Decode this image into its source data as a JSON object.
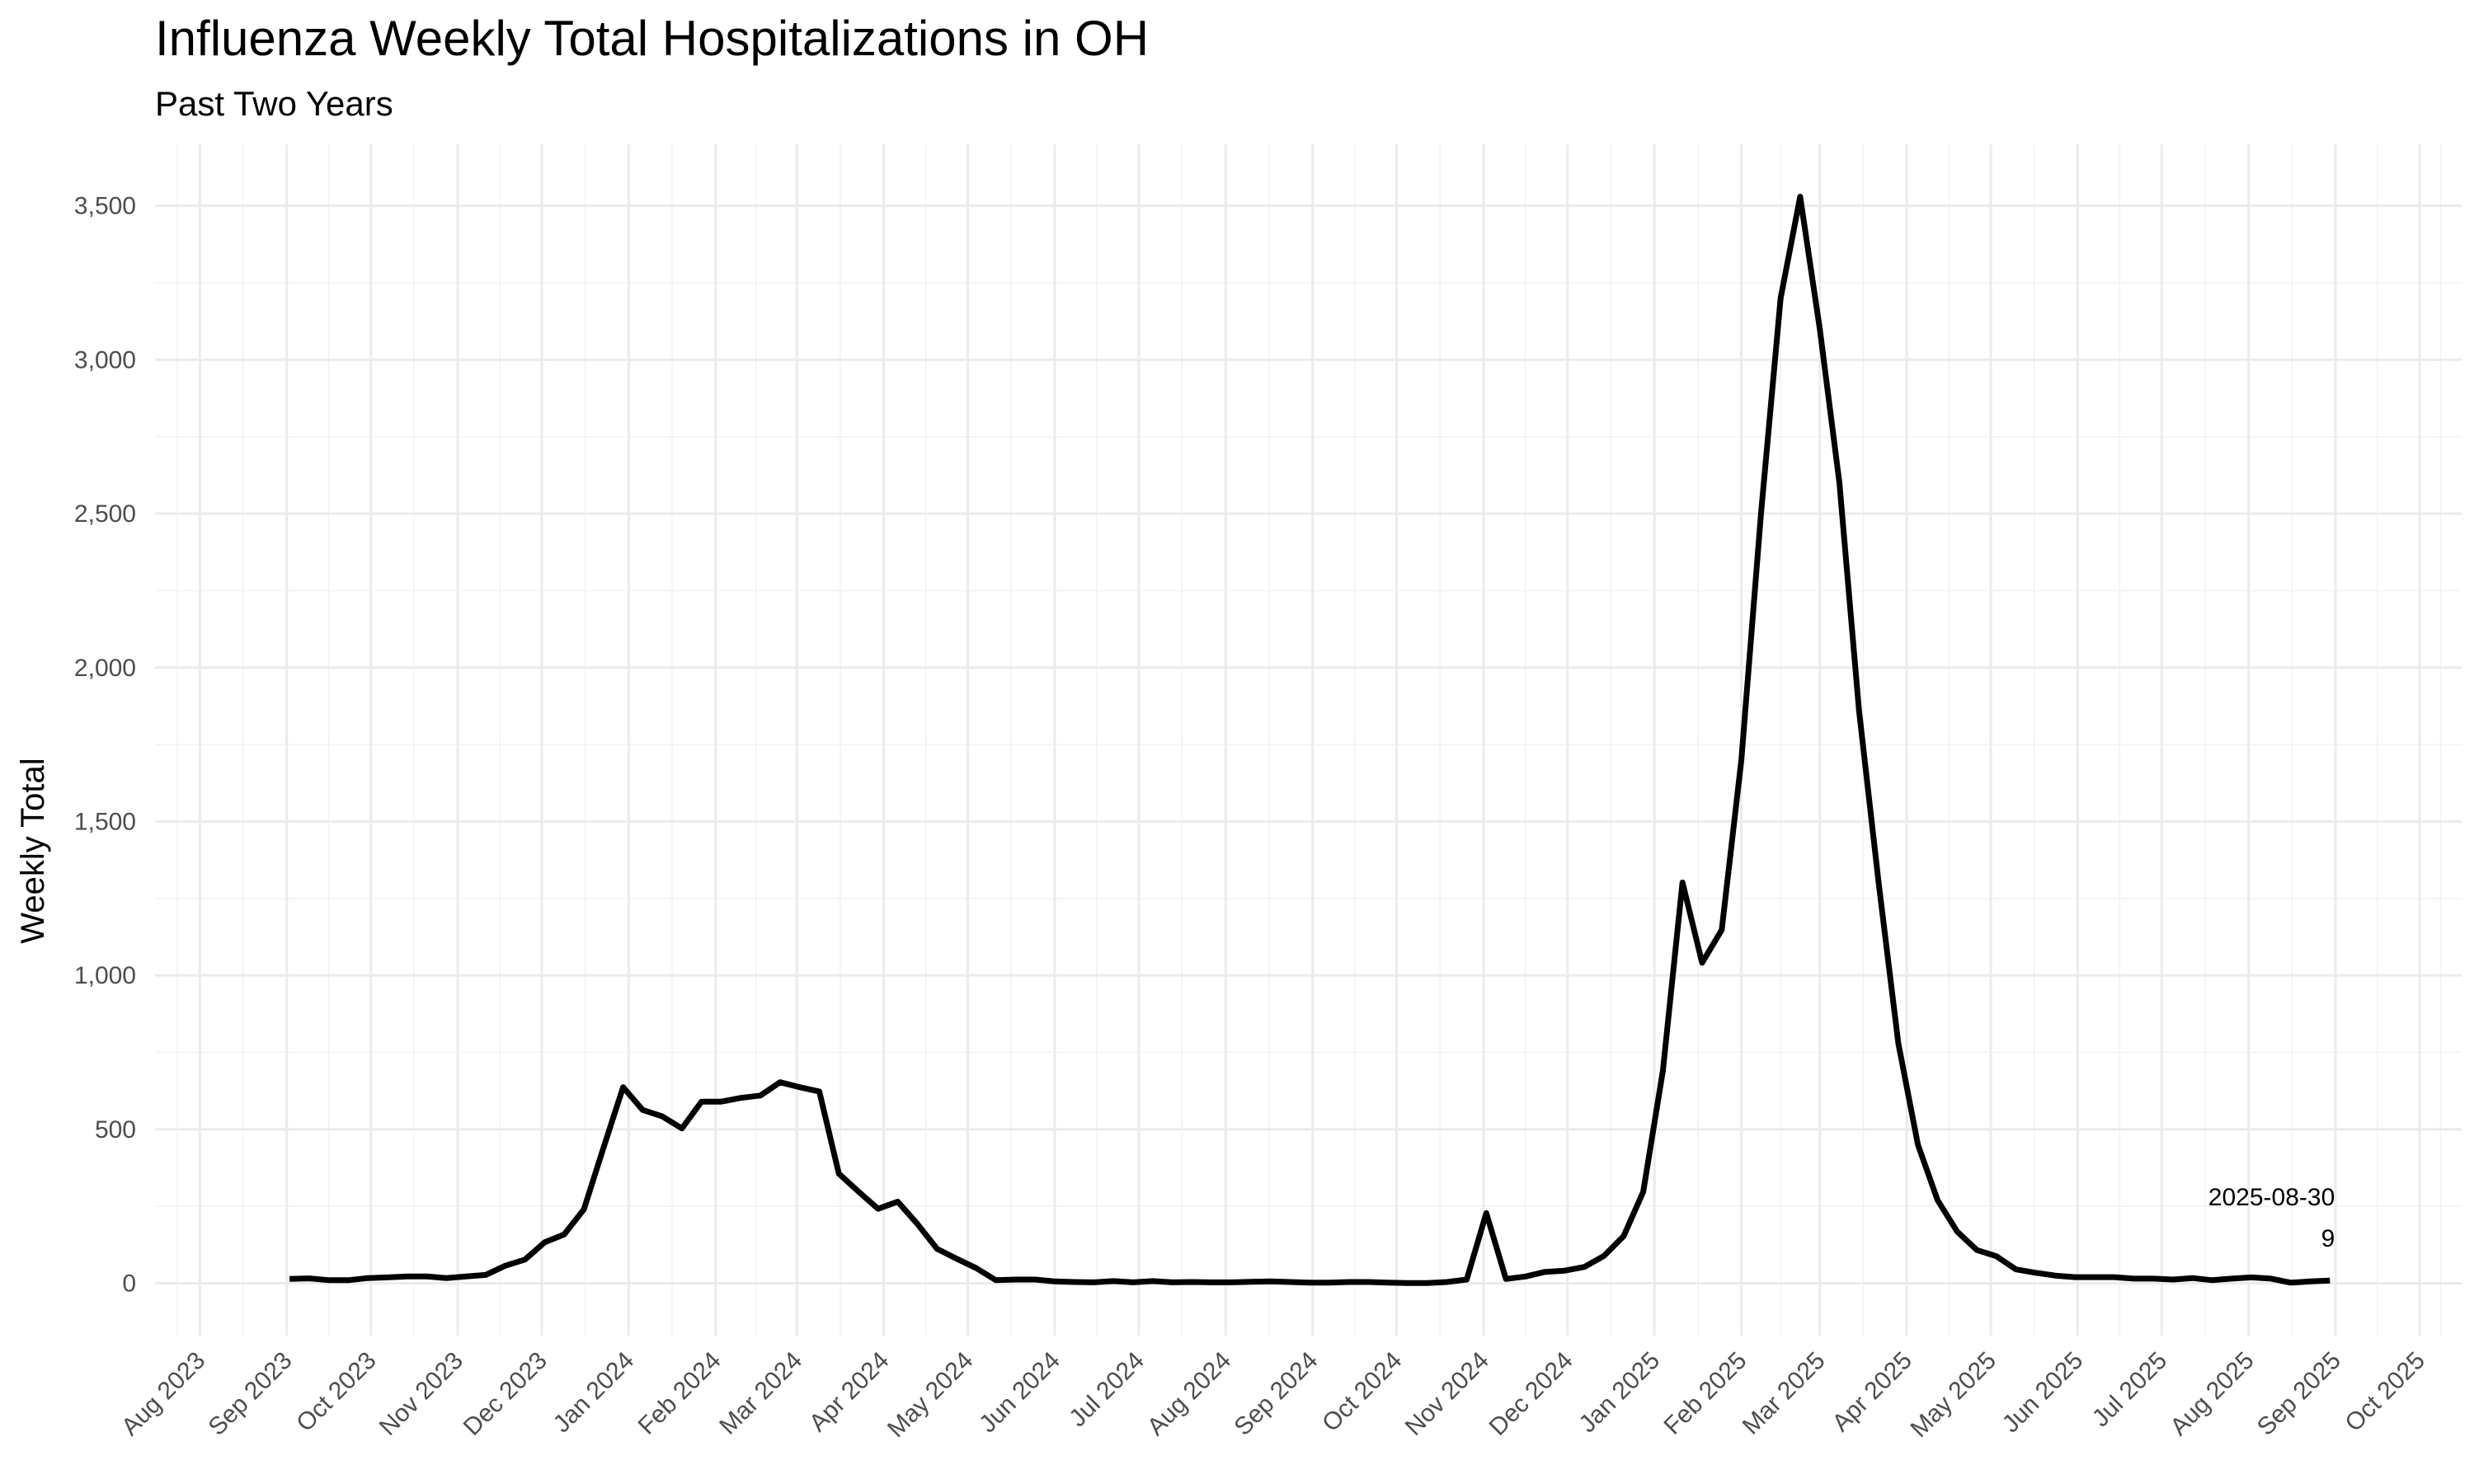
{
  "chart_data": {
    "type": "line",
    "title": "Influenza Weekly Total Hospitalizations in OH",
    "subtitle": "Past Two Years",
    "xlabel": "",
    "ylabel": "Weekly Total",
    "ylim": [
      -170,
      3700
    ],
    "y_ticks": [
      0,
      500,
      1000,
      1500,
      2000,
      2500,
      3000,
      3500
    ],
    "y_tick_labels": [
      "0",
      "500",
      "1,000",
      "1,500",
      "2,000",
      "2,500",
      "3,000",
      "3,500"
    ],
    "xlim": [
      "2023-07-16",
      "2025-10-16"
    ],
    "x_ticks": [
      "2023-08-01",
      "2023-09-01",
      "2023-10-01",
      "2023-11-01",
      "2023-12-01",
      "2024-01-01",
      "2024-02-01",
      "2024-03-01",
      "2024-04-01",
      "2024-05-01",
      "2024-06-01",
      "2024-07-01",
      "2024-08-01",
      "2024-09-01",
      "2024-10-01",
      "2024-11-01",
      "2024-12-01",
      "2025-01-01",
      "2025-02-01",
      "2025-03-01",
      "2025-04-01",
      "2025-05-01",
      "2025-06-01",
      "2025-07-01",
      "2025-08-01",
      "2025-09-01",
      "2025-10-01"
    ],
    "x_tick_labels": [
      "Aug 2023",
      "Sep 2023",
      "Oct 2023",
      "Nov 2023",
      "Dec 2023",
      "Jan 2024",
      "Feb 2024",
      "Mar 2024",
      "Apr 2024",
      "May 2024",
      "Jun 2024",
      "Jul 2024",
      "Aug 2024",
      "Sep 2024",
      "Oct 2024",
      "Nov 2024",
      "Dec 2024",
      "Jan 2025",
      "Feb 2025",
      "Mar 2025",
      "Apr 2025",
      "May 2025",
      "Jun 2025",
      "Jul 2025",
      "Aug 2025",
      "Sep 2025",
      "Oct 2025"
    ],
    "grid": true,
    "legend": "none",
    "series": [
      {
        "color": "#000000",
        "x": [
          "2023-09-02",
          "2023-09-09",
          "2023-09-16",
          "2023-09-23",
          "2023-09-30",
          "2023-10-07",
          "2023-10-14",
          "2023-10-21",
          "2023-10-28",
          "2023-11-04",
          "2023-11-11",
          "2023-11-18",
          "2023-11-25",
          "2023-12-02",
          "2023-12-09",
          "2023-12-16",
          "2023-12-23",
          "2023-12-30",
          "2024-01-06",
          "2024-01-13",
          "2024-01-20",
          "2024-01-27",
          "2024-02-03",
          "2024-02-10",
          "2024-02-17",
          "2024-02-24",
          "2024-03-02",
          "2024-03-09",
          "2024-03-16",
          "2024-03-23",
          "2024-03-30",
          "2024-04-06",
          "2024-04-13",
          "2024-04-20",
          "2024-04-27",
          "2024-05-04",
          "2024-05-11",
          "2024-05-18",
          "2024-05-25",
          "2024-06-01",
          "2024-06-08",
          "2024-06-15",
          "2024-06-22",
          "2024-06-29",
          "2024-07-06",
          "2024-07-13",
          "2024-07-20",
          "2024-07-27",
          "2024-08-03",
          "2024-08-10",
          "2024-08-17",
          "2024-08-24",
          "2024-08-31",
          "2024-09-07",
          "2024-09-14",
          "2024-09-21",
          "2024-09-28",
          "2024-10-05",
          "2024-10-12",
          "2024-10-19",
          "2024-10-26",
          "2024-11-02",
          "2024-11-09",
          "2024-11-16",
          "2024-11-23",
          "2024-11-30",
          "2024-12-07",
          "2024-12-14",
          "2024-12-21",
          "2024-12-28",
          "2025-01-04",
          "2025-01-11",
          "2025-01-18",
          "2025-01-25",
          "2025-02-01",
          "2025-02-08",
          "2025-02-15",
          "2025-02-22",
          "2025-03-01",
          "2025-03-08",
          "2025-03-15",
          "2025-03-22",
          "2025-03-29",
          "2025-04-05",
          "2025-04-12",
          "2025-04-19",
          "2025-04-26",
          "2025-05-03",
          "2025-05-10",
          "2025-05-17",
          "2025-05-24",
          "2025-05-31",
          "2025-06-07",
          "2025-06-14",
          "2025-06-21",
          "2025-06-28",
          "2025-07-05",
          "2025-07-12",
          "2025-07-19",
          "2025-07-26",
          "2025-08-02",
          "2025-08-09",
          "2025-08-16",
          "2025-08-23",
          "2025-08-30"
        ],
        "values": [
          14,
          16,
          10,
          10,
          17,
          19,
          22,
          22,
          17,
          22,
          27,
          57,
          77,
          133,
          159,
          240,
          440,
          637,
          563,
          542,
          503,
          590,
          590,
          602,
          610,
          653,
          637,
          623,
          356,
          298,
          242,
          265,
          193,
          112,
          80,
          49,
          10,
          12,
          12,
          6,
          4,
          3,
          7,
          3,
          7,
          3,
          4,
          3,
          3,
          5,
          6,
          4,
          2,
          2,
          4,
          4,
          2,
          1,
          1,
          4,
          12,
          228,
          14,
          22,
          37,
          41,
          53,
          89,
          153,
          297,
          690,
          1302,
          1041,
          1148,
          1700,
          2500,
          3200,
          3530,
          3100,
          2600,
          1860,
          1300,
          780,
          450,
          270,
          168,
          108,
          88,
          45,
          34,
          25,
          20,
          20,
          20,
          15,
          15,
          12,
          17,
          10,
          15,
          19,
          15,
          2,
          6,
          9
        ]
      }
    ],
    "annotations": [
      {
        "date": "2025-08-30",
        "label": "2025-08-30",
        "value_label": "9"
      }
    ]
  }
}
